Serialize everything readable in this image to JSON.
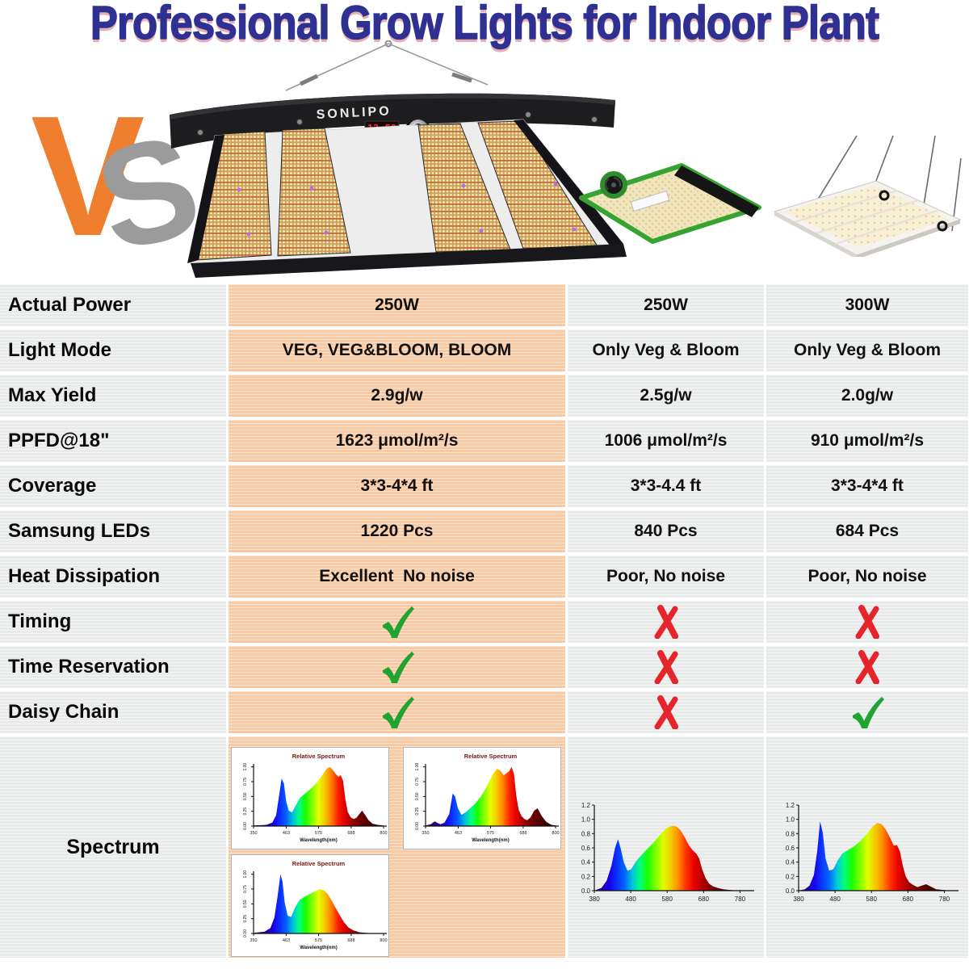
{
  "header": {
    "title": "Professional Grow Lights for Indoor Plant",
    "vs": {
      "v": "V",
      "s": "S"
    }
  },
  "products": {
    "sonlipo": {
      "brand": "SONLIPO",
      "display_readout": "12:59"
    }
  },
  "colors": {
    "title_blue": "#2e3192",
    "title_shadow_red": "#c1272d",
    "peach": "#f9c9a3",
    "cell_gray": "#e8ebea",
    "check_green": "#1fa331",
    "cross_red": "#e6242b",
    "vs_orange": "#ef7f2f",
    "vs_gray": "#9b9b9b"
  },
  "table": {
    "columns": [
      "feature",
      "sonlipo",
      "competitor-1",
      "competitor-2"
    ],
    "rows": [
      {
        "label": "Actual Power",
        "kind": "text",
        "values": [
          "250W",
          "250W",
          "300W"
        ]
      },
      {
        "label": "Light Mode",
        "kind": "text",
        "values": [
          "VEG, VEG&BLOOM, BLOOM",
          "Only Veg & Bloom",
          "Only Veg & Bloom"
        ]
      },
      {
        "label": "Max Yield",
        "kind": "text",
        "values": [
          "2.9g/w",
          "2.5g/w",
          "2.0g/w"
        ]
      },
      {
        "label": "PPFD@18\"",
        "kind": "text",
        "values": [
          "1623 μmol/m²/s",
          "1006 μmol/m²/s",
          "910 μmol/m²/s"
        ]
      },
      {
        "label": "Coverage",
        "kind": "text",
        "values": [
          "3*3-4*4 ft",
          "3*3-4.4 ft",
          "3*3-4*4 ft"
        ]
      },
      {
        "label": "Samsung LEDs",
        "kind": "text",
        "values": [
          "1220 Pcs",
          "840 Pcs",
          "684 Pcs"
        ]
      },
      {
        "label": "Heat Dissipation",
        "kind": "text",
        "values": [
          "Excellent  No noise",
          "Poor, No noise",
          "Poor, No noise"
        ]
      },
      {
        "label": "Timing",
        "kind": "mark",
        "values": [
          "check",
          "cross",
          "cross"
        ]
      },
      {
        "label": "Time Reservation",
        "kind": "mark",
        "values": [
          "check",
          "cross",
          "cross"
        ]
      },
      {
        "label": "Daisy Chain",
        "kind": "mark",
        "values": [
          "check",
          "cross",
          "check"
        ]
      }
    ],
    "spectrum_label": "Spectrum"
  },
  "chart_data": [
    {
      "id": "sonlipo-veg-bloom-spectrum",
      "type": "area",
      "title": "Relative Spectrum",
      "xlabel": "Wavelength(nm)",
      "xlim": [
        350,
        800
      ],
      "ylim": [
        0,
        1.05
      ],
      "xticks": [
        350,
        463,
        575,
        688,
        800
      ],
      "yticks": [
        0,
        0.25,
        0.5,
        0.75,
        1
      ],
      "x": [
        350,
        395,
        415,
        428,
        438,
        447,
        455,
        463,
        472,
        483,
        495,
        510,
        528,
        548,
        568,
        588,
        603,
        614,
        624,
        634,
        644,
        652,
        660,
        668,
        676,
        686,
        696,
        706,
        716,
        726,
        736,
        748,
        762,
        780,
        800
      ],
      "y": [
        0.01,
        0.02,
        0.06,
        0.18,
        0.5,
        0.8,
        0.72,
        0.42,
        0.26,
        0.23,
        0.34,
        0.47,
        0.55,
        0.63,
        0.73,
        0.86,
        0.97,
        1.0,
        0.95,
        0.88,
        0.83,
        0.86,
        0.76,
        0.44,
        0.24,
        0.15,
        0.12,
        0.14,
        0.2,
        0.26,
        0.19,
        0.1,
        0.04,
        0.02,
        0.01
      ]
    },
    {
      "id": "sonlipo-bloom-spectrum",
      "type": "area",
      "title": "Relative Spectrum",
      "xlabel": "Wavelength(nm)",
      "xlim": [
        350,
        800
      ],
      "ylim": [
        0,
        1.05
      ],
      "xticks": [
        350,
        463,
        575,
        688,
        800
      ],
      "yticks": [
        0,
        0.25,
        0.5,
        0.75,
        1
      ],
      "x": [
        350,
        368,
        382,
        392,
        402,
        416,
        432,
        444,
        452,
        462,
        474,
        488,
        504,
        522,
        542,
        562,
        582,
        598,
        610,
        620,
        630,
        640,
        648,
        656,
        664,
        672,
        682,
        692,
        702,
        714,
        726,
        738,
        752,
        768,
        786,
        800
      ],
      "y": [
        0.01,
        0.03,
        0.08,
        0.05,
        0.03,
        0.06,
        0.2,
        0.55,
        0.5,
        0.3,
        0.19,
        0.23,
        0.3,
        0.38,
        0.5,
        0.67,
        0.87,
        0.97,
        0.93,
        0.86,
        0.89,
        0.93,
        1.0,
        0.88,
        0.52,
        0.28,
        0.17,
        0.12,
        0.1,
        0.15,
        0.26,
        0.3,
        0.17,
        0.07,
        0.02,
        0.01
      ]
    },
    {
      "id": "sonlipo-veg-spectrum",
      "type": "area",
      "title": "Relative Spectrum",
      "xlabel": "Wavelength(nm)",
      "xlim": [
        350,
        800
      ],
      "ylim": [
        0,
        1.05
      ],
      "xticks": [
        350,
        463,
        575,
        688,
        800
      ],
      "yticks": [
        0,
        0.25,
        0.5,
        0.75,
        1
      ],
      "x": [
        350,
        388,
        408,
        422,
        433,
        443,
        450,
        458,
        468,
        480,
        494,
        510,
        527,
        546,
        566,
        580,
        593,
        606,
        619,
        633,
        648,
        663,
        679,
        696,
        716,
        740,
        770,
        800
      ],
      "y": [
        0.01,
        0.03,
        0.09,
        0.27,
        0.62,
        1.0,
        0.88,
        0.52,
        0.3,
        0.28,
        0.44,
        0.57,
        0.62,
        0.67,
        0.72,
        0.75,
        0.73,
        0.67,
        0.57,
        0.44,
        0.31,
        0.19,
        0.1,
        0.05,
        0.02,
        0.01,
        0,
        0
      ]
    },
    {
      "id": "competitor-1-spectrum",
      "type": "area",
      "title": "",
      "xlabel": "",
      "xlim": [
        380,
        810
      ],
      "ylim": [
        0,
        1.2
      ],
      "xticks": [
        380,
        480,
        580,
        680,
        780
      ],
      "yticks": [
        0,
        0.2,
        0.4,
        0.6,
        0.8,
        1.0,
        1.2
      ],
      "x": [
        380,
        400,
        414,
        427,
        437,
        445,
        452,
        461,
        471,
        481,
        493,
        506,
        521,
        540,
        560,
        579,
        594,
        605,
        616,
        628,
        640,
        651,
        660,
        668,
        676,
        685,
        695,
        706,
        718,
        733,
        752,
        775,
        800
      ],
      "y": [
        0,
        0.04,
        0.14,
        0.35,
        0.6,
        0.72,
        0.6,
        0.4,
        0.28,
        0.3,
        0.4,
        0.48,
        0.56,
        0.66,
        0.78,
        0.88,
        0.91,
        0.9,
        0.85,
        0.75,
        0.63,
        0.56,
        0.52,
        0.45,
        0.3,
        0.18,
        0.1,
        0.06,
        0.04,
        0.02,
        0.01,
        0,
        0
      ]
    },
    {
      "id": "competitor-2-spectrum",
      "type": "area",
      "title": "",
      "xlabel": "",
      "xlim": [
        380,
        810
      ],
      "ylim": [
        0,
        1.2
      ],
      "xticks": [
        380,
        480,
        580,
        680,
        780
      ],
      "yticks": [
        0,
        0.2,
        0.4,
        0.6,
        0.8,
        1.0,
        1.2
      ],
      "x": [
        380,
        397,
        410,
        422,
        431,
        439,
        446,
        454,
        464,
        475,
        487,
        500,
        515,
        532,
        550,
        568,
        583,
        596,
        608,
        620,
        632,
        641,
        650,
        658,
        666,
        674,
        683,
        694,
        706,
        718,
        730,
        742,
        757,
        777,
        800
      ],
      "y": [
        0,
        0.02,
        0.07,
        0.22,
        0.55,
        0.97,
        0.82,
        0.45,
        0.28,
        0.3,
        0.42,
        0.52,
        0.57,
        0.62,
        0.7,
        0.8,
        0.9,
        0.95,
        0.93,
        0.85,
        0.73,
        0.63,
        0.64,
        0.55,
        0.35,
        0.2,
        0.12,
        0.08,
        0.05,
        0.07,
        0.09,
        0.06,
        0.02,
        0.01,
        0
      ]
    }
  ]
}
